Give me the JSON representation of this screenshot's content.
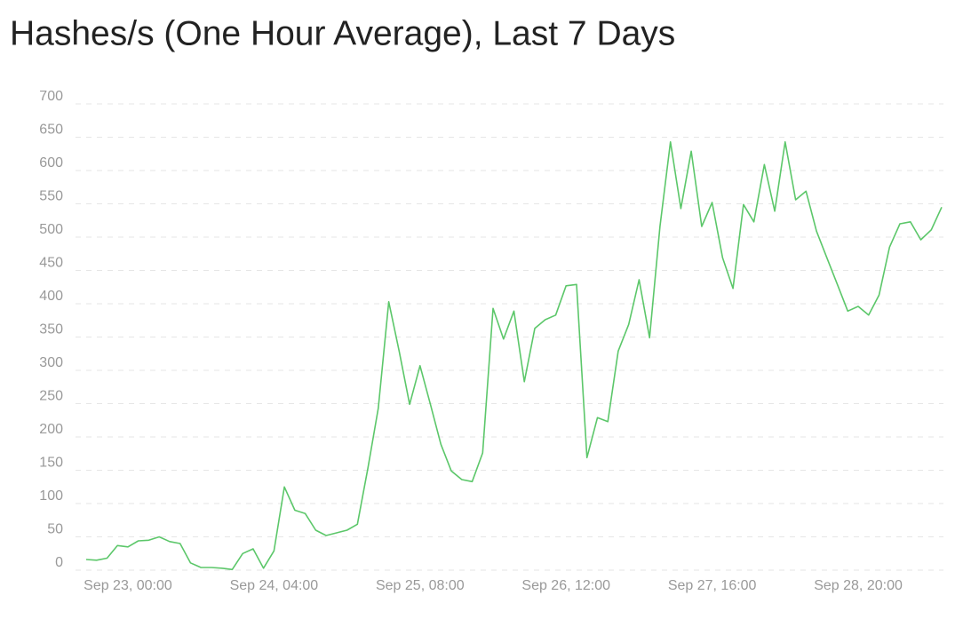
{
  "chart_data": {
    "type": "line",
    "title": "Hashes/s (One Hour Average), Last 7 Days",
    "x": [
      "Sep 22, 16:00",
      "Sep 22, 18:00",
      "Sep 22, 20:00",
      "Sep 22, 22:00",
      "Sep 23, 00:00",
      "Sep 23, 02:00",
      "Sep 23, 04:00",
      "Sep 23, 06:00",
      "Sep 23, 08:00",
      "Sep 23, 10:00",
      "Sep 23, 12:00",
      "Sep 23, 14:00",
      "Sep 23, 16:00",
      "Sep 23, 18:00",
      "Sep 23, 20:00",
      "Sep 23, 22:00",
      "Sep 24, 00:00",
      "Sep 24, 02:00",
      "Sep 24, 04:00",
      "Sep 24, 06:00",
      "Sep 24, 08:00",
      "Sep 24, 10:00",
      "Sep 24, 12:00",
      "Sep 24, 14:00",
      "Sep 24, 16:00",
      "Sep 24, 18:00",
      "Sep 24, 20:00",
      "Sep 24, 22:00",
      "Sep 25, 00:00",
      "Sep 25, 02:00",
      "Sep 25, 04:00",
      "Sep 25, 06:00",
      "Sep 25, 08:00",
      "Sep 25, 10:00",
      "Sep 25, 12:00",
      "Sep 25, 14:00",
      "Sep 25, 16:00",
      "Sep 25, 18:00",
      "Sep 25, 20:00",
      "Sep 25, 22:00",
      "Sep 26, 00:00",
      "Sep 26, 02:00",
      "Sep 26, 04:00",
      "Sep 26, 06:00",
      "Sep 26, 08:00",
      "Sep 26, 10:00",
      "Sep 26, 12:00",
      "Sep 26, 14:00",
      "Sep 26, 16:00",
      "Sep 26, 18:00",
      "Sep 26, 20:00",
      "Sep 26, 22:00",
      "Sep 27, 00:00",
      "Sep 27, 02:00",
      "Sep 27, 04:00",
      "Sep 27, 06:00",
      "Sep 27, 08:00",
      "Sep 27, 10:00",
      "Sep 27, 12:00",
      "Sep 27, 14:00",
      "Sep 27, 16:00",
      "Sep 27, 18:00",
      "Sep 27, 20:00",
      "Sep 27, 22:00",
      "Sep 28, 00:00",
      "Sep 28, 02:00",
      "Sep 28, 04:00",
      "Sep 28, 06:00",
      "Sep 28, 08:00",
      "Sep 28, 10:00",
      "Sep 28, 12:00",
      "Sep 28, 14:00",
      "Sep 28, 16:00",
      "Sep 28, 18:00",
      "Sep 28, 20:00",
      "Sep 28, 22:00",
      "Sep 29, 00:00",
      "Sep 29, 02:00",
      "Sep 29, 04:00",
      "Sep 29, 06:00",
      "Sep 29, 08:00",
      "Sep 29, 10:00",
      "Sep 29, 12:00"
    ],
    "values": [
      16,
      15,
      18,
      37,
      35,
      44,
      45,
      50,
      43,
      40,
      11,
      4,
      4,
      3,
      1,
      25,
      32,
      3,
      29,
      125,
      90,
      85,
      60,
      52,
      56,
      60,
      69,
      153,
      243,
      403,
      329,
      249,
      307,
      249,
      189,
      149,
      136,
      133,
      176,
      393,
      347,
      389,
      283,
      363,
      376,
      383,
      427,
      429,
      169,
      229,
      223,
      329,
      369,
      436,
      349,
      516,
      643,
      543,
      629,
      516,
      552,
      469,
      423,
      549,
      523,
      609,
      539,
      643,
      556,
      569,
      509,
      469,
      429,
      389,
      396,
      383,
      413,
      485,
      520,
      523,
      496,
      511,
      545
    ],
    "color": "#5cc76a",
    "xlim": [
      "Sep 22, 16:00",
      "Sep 29, 12:00"
    ],
    "xticks": [
      "Sep 23, 00:00",
      "Sep 24, 04:00",
      "Sep 25, 08:00",
      "Sep 26, 12:00",
      "Sep 27, 16:00",
      "Sep 28, 20:00"
    ],
    "ylim": [
      0,
      700
    ],
    "yticks": [
      0,
      50,
      100,
      150,
      200,
      250,
      300,
      350,
      400,
      450,
      500,
      550,
      600,
      650,
      700
    ],
    "grid": true
  }
}
